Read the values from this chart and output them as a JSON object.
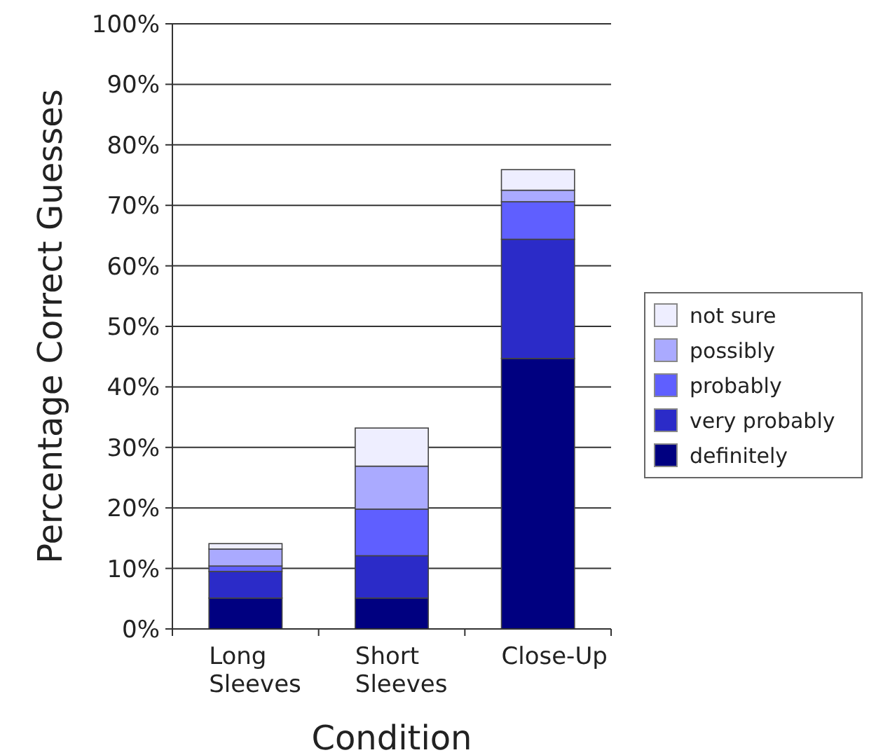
{
  "chart_data": {
    "type": "bar",
    "stacked": true,
    "xlabel": "Condition",
    "ylabel": "Percentage Correct Guesses",
    "categories": [
      "Long Sleeves",
      "Short Sleeves",
      "Close-Up"
    ],
    "series": [
      {
        "name": "definitely",
        "color": "#000080",
        "values": [
          5.1,
          5.1,
          44.7
        ]
      },
      {
        "name": "very probably",
        "color": "#2b2bc8",
        "values": [
          4.4,
          7.0,
          19.7
        ]
      },
      {
        "name": "probably",
        "color": "#5f5fff",
        "values": [
          0.9,
          7.7,
          6.2
        ]
      },
      {
        "name": "possibly",
        "color": "#aaaaff",
        "values": [
          2.8,
          7.1,
          1.9
        ]
      },
      {
        "name": "not sure",
        "color": "#eeeeff",
        "values": [
          0.9,
          6.3,
          3.4
        ]
      }
    ],
    "ylim": [
      0,
      100
    ],
    "yticks": [
      {
        "value": 0,
        "label": "0%"
      },
      {
        "value": 10,
        "label": "10%"
      },
      {
        "value": 20,
        "label": "20%"
      },
      {
        "value": 30,
        "label": "30%"
      },
      {
        "value": 40,
        "label": "40%"
      },
      {
        "value": 50,
        "label": "50%"
      },
      {
        "value": 60,
        "label": "60%"
      },
      {
        "value": 70,
        "label": "70%"
      },
      {
        "value": 80,
        "label": "80%"
      },
      {
        "value": 90,
        "label": "90%"
      },
      {
        "value": 100,
        "label": "100%"
      }
    ],
    "grid": "y",
    "legend": "right"
  }
}
